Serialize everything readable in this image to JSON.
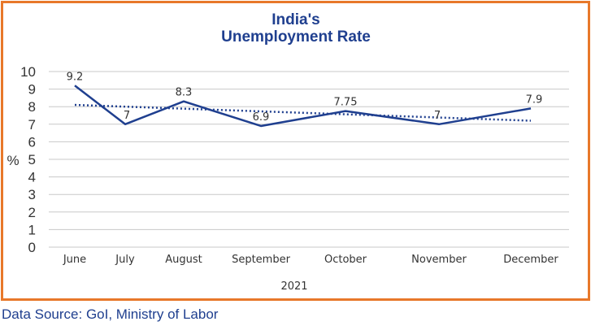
{
  "chart_data": {
    "type": "line",
    "title": "India's",
    "subtitle": "Unemployment Rate",
    "ylabel": "%",
    "xlabel": "2021",
    "ylim": [
      0,
      10
    ],
    "yticks": [
      "0",
      "1",
      "2",
      "3",
      "4",
      "5",
      "6",
      "7",
      "8",
      "9",
      "10"
    ],
    "categories": [
      "June",
      "July",
      "August",
      "September",
      "October",
      "November",
      "December"
    ],
    "series": [
      {
        "values": [
          9.2,
          7,
          8.3,
          6.9,
          7.75,
          7,
          7.9
        ],
        "labels": [
          "9.2",
          "7",
          "8.3",
          "6.9",
          "7.75",
          "7",
          "7.9"
        ]
      }
    ],
    "trendline": {
      "style": "dotted",
      "start": 8.1,
      "end": 7.2
    },
    "grid": true,
    "colors": {
      "line": "#1f3f8f",
      "frame": "#e8782a",
      "grid": "#c8c8c8",
      "title": "#1f3f8f"
    }
  },
  "source": "Data Source: GoI, Ministry of Labor"
}
